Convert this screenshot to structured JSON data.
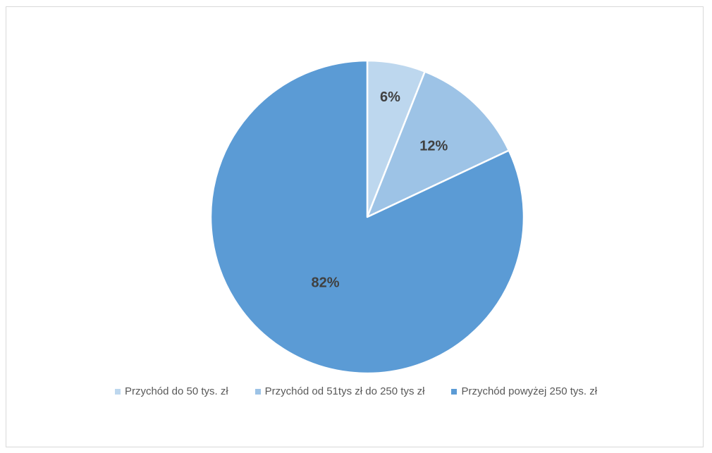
{
  "chart_data": {
    "type": "pie",
    "title": "",
    "categories": [
      "Przychód do 50 tys. zł",
      "Przychód od 51tys zł do 250 tys zł",
      "Przychód powyżej 250 tys. zł"
    ],
    "values": [
      6,
      12,
      82
    ],
    "data_labels": [
      "6%",
      "12%",
      "82%"
    ],
    "colors": [
      "#bdd7ee",
      "#9dc3e6",
      "#5b9bd5"
    ],
    "legend_position": "bottom"
  }
}
